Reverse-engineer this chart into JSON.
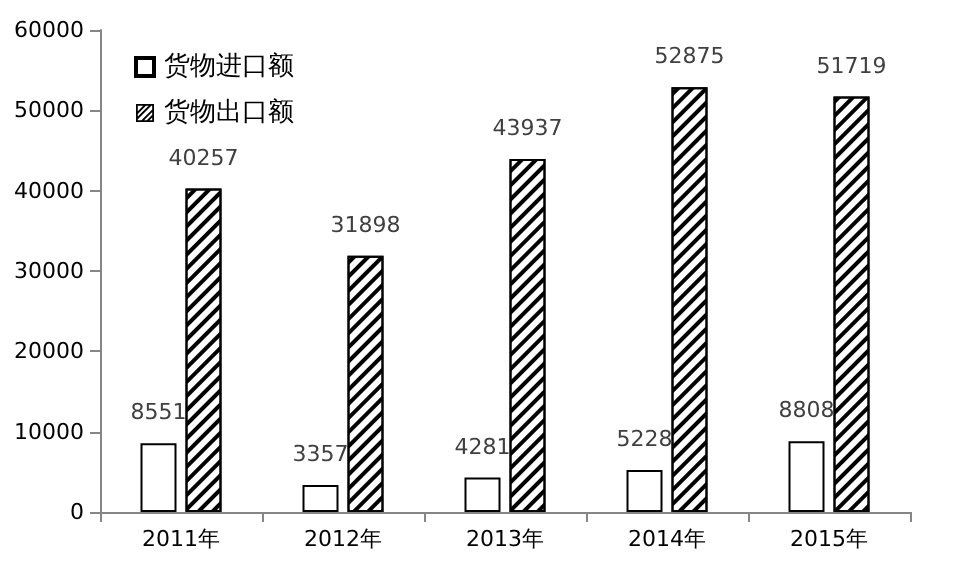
{
  "chart_data": {
    "type": "bar",
    "categories": [
      "2011年",
      "2012年",
      "2013年",
      "2014年",
      "2015年"
    ],
    "series": [
      {
        "name": "货物进口额",
        "color": "#ffffff",
        "values": [
          8551,
          3357,
          4281,
          5228,
          8808
        ]
      },
      {
        "name": "货物出口额",
        "color": "#000000",
        "values": [
          40257,
          31898,
          43937,
          52875,
          51719
        ]
      }
    ],
    "ylim": [
      0,
      60000
    ],
    "yticks": [
      0,
      10000,
      20000,
      30000,
      40000,
      50000,
      60000
    ],
    "grid": false,
    "legend": "top left",
    "data_labels": true
  }
}
